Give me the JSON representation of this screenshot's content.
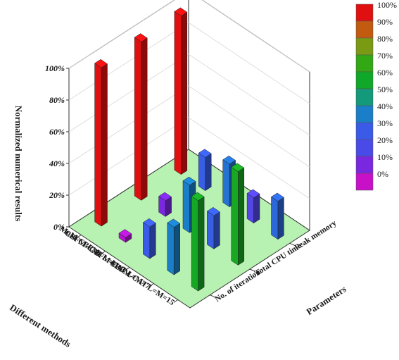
{
  "chart_data": {
    "type": "bar3d",
    "zlabel": "Normalized numerical results",
    "xlabel": "Different methods",
    "ylabel": "Parameters",
    "zlim": [
      0,
      100
    ],
    "z_ticks": [
      "0%",
      "20%",
      "40%",
      "60%",
      "80%",
      "100%"
    ],
    "methods": [
      "MoM",
      "CBFM",
      "CBFM-CAT L=M=3",
      "CBFM-CAT L=M=7",
      "CBFM-CAT L=M=15"
    ],
    "method_labels": [
      "MoM",
      "CBFM-",
      "CBFM-CAT L=M=3",
      "CBFM-CAT L=M=7",
      "CBFM-CAT L=M=15"
    ],
    "parameters": [
      "No. of iteration",
      "Total CPU time",
      "Peak memory"
    ],
    "series": [
      {
        "name": "No. of iteration",
        "values": [
          100,
          3,
          20,
          30,
          57
        ]
      },
      {
        "name": "Total CPU time",
        "values": [
          100,
          10,
          30,
          21,
          59
        ]
      },
      {
        "name": "Peak memory",
        "values": [
          100,
          21,
          27,
          16,
          24
        ]
      }
    ],
    "legend": {
      "position": "right",
      "labels": [
        "100%",
        "90%",
        "80%",
        "70%",
        "60%",
        "50%",
        "40%",
        "30%",
        "20%",
        "10%",
        "0%"
      ],
      "colors": [
        "#e01010",
        "#c25a10",
        "#7b9a14",
        "#32a814",
        "#10a828",
        "#129a7a",
        "#1a7ec8",
        "#3a5ae8",
        "#4a4ae8",
        "#7a28e0",
        "#c810c8"
      ]
    },
    "floor_color": "#b7f2b2",
    "grid": true
  }
}
